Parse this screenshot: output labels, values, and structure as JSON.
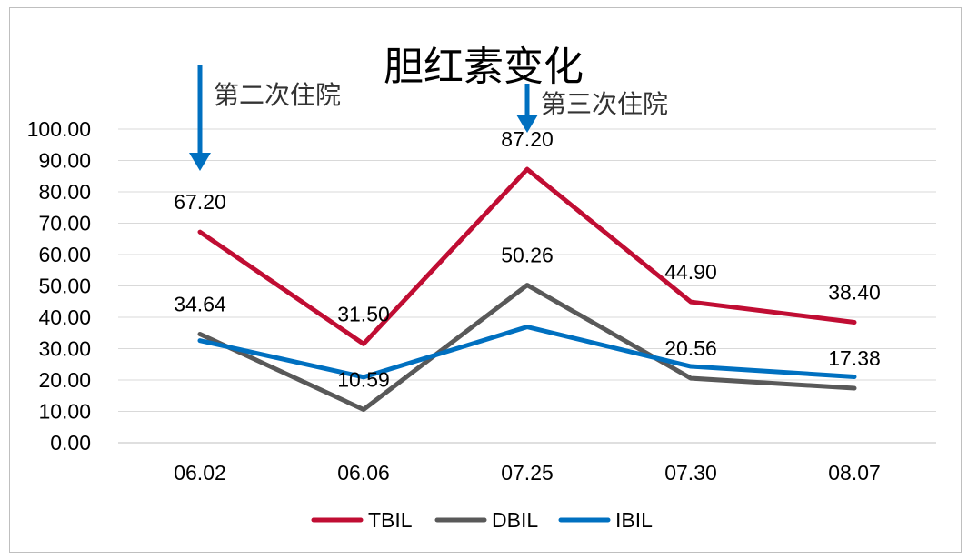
{
  "chart_data": {
    "type": "line",
    "title": "胆红素变化",
    "categories": [
      "06.02",
      "06.06",
      "07.25",
      "07.30",
      "08.07"
    ],
    "ylim": [
      0,
      100
    ],
    "ytick_labels": [
      "0.00",
      "10.00",
      "20.00",
      "30.00",
      "40.00",
      "50.00",
      "60.00",
      "70.00",
      "80.00",
      "90.00",
      "100.00"
    ],
    "grid": true,
    "legend_position": "bottom",
    "series": [
      {
        "name": "TBIL",
        "color": "#c00d33",
        "values": [
          67.2,
          31.5,
          87.2,
          44.9,
          38.4
        ],
        "labels": [
          "67.20",
          "31.50",
          "87.20",
          "44.90",
          "38.40"
        ]
      },
      {
        "name": "DBIL",
        "color": "#595959",
        "values": [
          34.64,
          10.59,
          50.26,
          20.56,
          17.38
        ],
        "labels": [
          "34.64",
          "10.59",
          "50.26",
          "20.56",
          "17.38"
        ]
      },
      {
        "name": "IBIL",
        "color": "#0070c0",
        "values": [
          32.56,
          20.91,
          36.94,
          24.34,
          21.02
        ],
        "labels": []
      }
    ],
    "annotations": [
      {
        "text": "第二次住院",
        "category": "06.02",
        "color": "#0070c0"
      },
      {
        "text": "第三次住院",
        "category": "07.25",
        "color": "#0070c0"
      }
    ]
  }
}
